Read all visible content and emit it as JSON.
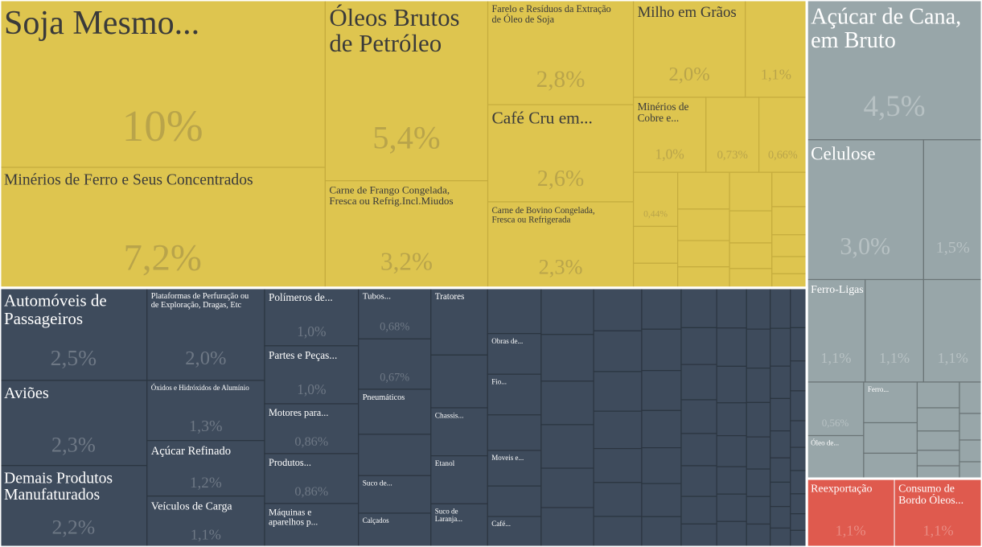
{
  "chart_data": {
    "type": "treemap",
    "series": [
      {
        "color": "#dec54f",
        "categories": [
          "Soja Mesmo...",
          "Minérios de Ferro e Seus Concentrados",
          "Óleos Brutos de Petróleo",
          "Carne de Frango Congelada, Fresca ou Refrig.Incl.Miudos",
          "Farelo e Resíduos da Extração de Óleo de Soja",
          "Café Cru em...",
          "Carne de Bovino Congelada, Fresca ou Refrigerada",
          "Milho em Grãos",
          null,
          "Minérios de Cobre e...",
          null,
          null,
          null,
          null,
          null,
          null,
          null,
          null,
          null,
          null,
          null,
          null,
          null,
          null,
          null,
          null,
          null,
          null
        ],
        "values": [
          10,
          7.2,
          5.4,
          3.2,
          2.8,
          2.6,
          2.3,
          2.0,
          1.1,
          1.0,
          0.73,
          0.66,
          0.44,
          0.3,
          0.2,
          0.35,
          0.3,
          0.25,
          0.2,
          0.3,
          0.25,
          0.2,
          0.15,
          0.22,
          0.18,
          0.14,
          0.11,
          0.09
        ],
        "value_labels": [
          "10%",
          "7,2%",
          "5,4%",
          "3,2%",
          "2,8%",
          "2,6%",
          "2,3%",
          "2,0%",
          "1,1%",
          "1,0%",
          "0,73%",
          "0,66%",
          "0,44%",
          null,
          null,
          null,
          null,
          null,
          null,
          null,
          null,
          null,
          null,
          null,
          null,
          null,
          null,
          null
        ]
      },
      {
        "color": "#3e4b5c",
        "categories": [
          "Automóveis de Passageiros",
          "Aviões",
          "Demais Produtos Manufaturados",
          "Plataformas de Perfuração ou de Exploração, Dragas, Etc",
          "Óxidos e Hidróxidos de Alumínio",
          "Açúcar Refinado",
          "Veículos de Carga",
          "Polímeros de...",
          "Partes e Peças...",
          "Motores para...",
          "Produtos...",
          "Máquinas e aparelhos p...",
          "Tubos...",
          null,
          "Pneumáticos",
          null,
          "Suco de...",
          "Calçados",
          "Tratores",
          null,
          "Chassis...",
          "Etanol",
          "Suco de Laranja...",
          null,
          "Obras de...",
          "Fio...",
          null,
          "Moveis e...",
          null,
          "Café...",
          null,
          null,
          null,
          null,
          null,
          null,
          null,
          null,
          null,
          null,
          null,
          null,
          null,
          null,
          null,
          null,
          null,
          null,
          null,
          null,
          null,
          null,
          null,
          null,
          null,
          null,
          null,
          null,
          null,
          null,
          null,
          null,
          null,
          null,
          null,
          null,
          null,
          null,
          null,
          null,
          null,
          null,
          null,
          null,
          null,
          null,
          null,
          null,
          null,
          null,
          null,
          null,
          null,
          null,
          null,
          null,
          null,
          null,
          null,
          null,
          null,
          null,
          null
        ],
        "values": [
          2.5,
          2.3,
          2.2,
          2.0,
          1.3,
          1.2,
          1.1,
          1.0,
          1.0,
          0.86,
          0.86,
          0.75,
          0.68,
          0.67,
          0.6,
          0.55,
          0.5,
          0.45,
          0.7,
          0.55,
          0.5,
          0.5,
          0.45,
          0.45,
          0.4,
          0.4,
          0.35,
          0.35,
          0.3,
          0.3,
          0.45,
          0.45,
          0.42,
          0.42,
          0.38,
          0.38,
          0.38,
          0.36,
          0.35,
          0.33,
          0.3,
          0.3,
          0.27,
          0.3,
          0.3,
          0.29,
          0.27,
          0.26,
          0.24,
          0.22,
          0.26,
          0.24,
          0.23,
          0.22,
          0.21,
          0.2,
          0.18,
          0.15,
          0.22,
          0.21,
          0.2,
          0.18,
          0.17,
          0.15,
          0.15,
          0.14,
          0.18,
          0.17,
          0.15,
          0.15,
          0.14,
          0.12,
          0.12,
          0.1,
          0.15,
          0.14,
          0.12,
          0.12,
          0.1,
          0.09,
          0.09,
          0.08,
          0.07,
          0.12,
          0.1,
          0.09,
          0.09,
          0.08,
          0.07,
          0.07,
          0.06,
          0.05,
          0.05
        ],
        "value_labels": [
          "2,5%",
          "2,3%",
          "2,2%",
          "2,0%",
          "1,3%",
          "1,2%",
          "1,1%",
          "1,0%",
          "1,0%",
          "0,86%",
          "0,86%",
          null,
          "0,68%",
          "0,67%",
          null,
          null,
          null,
          null,
          null,
          null,
          null,
          null,
          null,
          null,
          null,
          null,
          null,
          null,
          null,
          null,
          null,
          null,
          null,
          null,
          null,
          null,
          null,
          null,
          null,
          null,
          null,
          null,
          null,
          null,
          null,
          null,
          null,
          null,
          null,
          null,
          null,
          null,
          null,
          null,
          null,
          null,
          null,
          null,
          null,
          null,
          null,
          null,
          null,
          null,
          null,
          null,
          null,
          null,
          null,
          null,
          null,
          null,
          null,
          null,
          null,
          null,
          null,
          null,
          null,
          null,
          null,
          null,
          null,
          null,
          null,
          null,
          null,
          null,
          null,
          null,
          null,
          null,
          null
        ]
      },
      {
        "color": "#98a6a9",
        "categories": [
          "Açúcar de Cana, em Bruto",
          "Celulose",
          null,
          "Ferro-Ligas",
          null,
          null,
          null,
          "Óleo de...",
          "Ferro...",
          null,
          null,
          null,
          null,
          null,
          null,
          null,
          null,
          null,
          null,
          null
        ],
        "values": [
          4.5,
          3.0,
          1.5,
          1.1,
          1.1,
          1.1,
          0.56,
          0.45,
          0.4,
          0.3,
          0.25,
          0.2,
          0.18,
          0.15,
          0.12,
          0.1,
          0.13,
          0.11,
          0.09,
          0.07
        ],
        "value_labels": [
          "4,5%",
          "3,0%",
          "1,5%",
          "1,1%",
          "1,1%",
          "1,1%",
          "0,56%",
          null,
          null,
          null,
          null,
          null,
          null,
          null,
          null,
          null,
          null,
          null,
          null,
          null
        ]
      },
      {
        "color": "#df5a4e",
        "categories": [
          "Reexportação",
          "Consumo de Bordo Óleos..."
        ],
        "values": [
          1.1,
          1.1
        ],
        "value_labels": [
          "1,1%",
          "1,1%"
        ]
      }
    ]
  }
}
